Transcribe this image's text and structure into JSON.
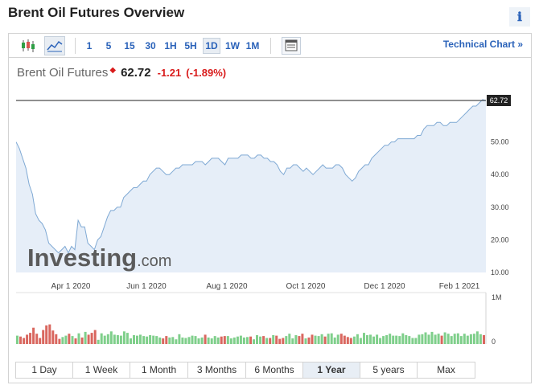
{
  "page_title": "Brent Oil Futures Overview",
  "info_icon": "ℹ",
  "toolbar": {
    "icons": [
      "candlestick-icon",
      "line-chart-icon",
      "chart-settings-icon"
    ],
    "intervals": [
      "1",
      "5",
      "15",
      "30",
      "1H",
      "5H",
      "1D",
      "1W",
      "1M"
    ],
    "active_interval": "1D",
    "technical_chart_label": "Technical Chart »"
  },
  "quote": {
    "name": "Brent Oil Futures",
    "price": "62.72",
    "change": "-1.21",
    "change_pct": "(-1.89%)"
  },
  "watermark": {
    "brand": "Investing",
    "suffix": ".com"
  },
  "ranges": [
    "1 Day",
    "1 Week",
    "1 Month",
    "3 Months",
    "6 Months",
    "1 Year",
    "5 years",
    "Max"
  ],
  "active_range": "1 Year",
  "colors": {
    "line": "#7fa9d4",
    "area": "#e6eef8",
    "up_bar": "#7fcf8b",
    "down_bar": "#d9675f",
    "accent": "#2a62b9",
    "negative": "#d91c1c"
  },
  "chart_data": {
    "type": "area",
    "series": [
      {
        "name": "Brent Oil Futures",
        "values": [
          50,
          48,
          45,
          42,
          37,
          34,
          28,
          26,
          25,
          23,
          19,
          18,
          17,
          16,
          17,
          18,
          16,
          18,
          17,
          26,
          24,
          24,
          19,
          18,
          17,
          20,
          21,
          24,
          27,
          29,
          29,
          30,
          30,
          33,
          34,
          35,
          36,
          36,
          37,
          38,
          38,
          40,
          41,
          42,
          42,
          41,
          40,
          40,
          41,
          42,
          42,
          43,
          43,
          43,
          43,
          44,
          44,
          44,
          43,
          44,
          45,
          45,
          45,
          44,
          43,
          45,
          45,
          45,
          45,
          46,
          46,
          46,
          45,
          45,
          46,
          46,
          45,
          45,
          44,
          44,
          43,
          41,
          40,
          42,
          42,
          43,
          43,
          42,
          41,
          42,
          41,
          40,
          41,
          42,
          43,
          42,
          42,
          42,
          43,
          43,
          42,
          40,
          39,
          38,
          39,
          41,
          42,
          43,
          43,
          45,
          46,
          47,
          48,
          49,
          49,
          50,
          50,
          51,
          51,
          51,
          51,
          51,
          51,
          52,
          52,
          54,
          55,
          55,
          55,
          56,
          56,
          55,
          55,
          56,
          56,
          56,
          57,
          58,
          59,
          60,
          61,
          61,
          62,
          63,
          62.72
        ]
      }
    ],
    "x_tick_labels": [
      "Apr 1 2020",
      "Jun 1 2020",
      "Aug 1 2020",
      "Oct 1 2020",
      "Dec 1 2020",
      "Feb 1 2021"
    ],
    "y_tick_labels": [
      "50.00",
      "40.00",
      "30.00",
      "20.00",
      "10.00"
    ],
    "y_ticks": [
      50,
      40,
      30,
      20,
      10
    ],
    "ylim": [
      10,
      62.72
    ],
    "last_value_label": "62.72",
    "volume": {
      "axis_labels": [
        "1M",
        "0"
      ],
      "values": [
        0.18,
        0.16,
        0.13,
        0.2,
        0.24,
        0.35,
        0.22,
        0.13,
        0.3,
        0.4,
        0.42,
        0.29,
        0.21,
        0.11,
        0.15,
        0.18,
        0.22,
        0.17,
        0.12,
        0.23,
        0.14,
        0.26,
        0.2,
        0.24,
        0.3,
        0.09,
        0.23,
        0.18,
        0.21,
        0.27,
        0.2,
        0.19,
        0.18,
        0.27,
        0.24,
        0.12,
        0.19,
        0.18,
        0.2,
        0.17,
        0.16,
        0.19,
        0.18,
        0.17,
        0.14,
        0.12,
        0.17,
        0.14,
        0.15,
        0.1,
        0.21,
        0.14,
        0.13,
        0.15,
        0.18,
        0.17,
        0.12,
        0.14,
        0.2,
        0.14,
        0.12,
        0.17,
        0.14,
        0.16,
        0.17,
        0.17,
        0.12,
        0.14,
        0.16,
        0.18,
        0.14,
        0.15,
        0.16,
        0.1,
        0.19,
        0.16,
        0.17,
        0.13,
        0.13,
        0.19,
        0.18,
        0.11,
        0.13,
        0.17,
        0.22,
        0.12,
        0.19,
        0.17,
        0.22,
        0.12,
        0.14,
        0.2,
        0.18,
        0.17,
        0.21,
        0.16,
        0.22,
        0.23,
        0.14,
        0.2,
        0.22,
        0.18,
        0.15,
        0.13,
        0.16,
        0.21,
        0.13,
        0.24,
        0.19,
        0.2,
        0.16,
        0.2,
        0.13,
        0.17,
        0.19,
        0.22,
        0.18,
        0.18,
        0.17,
        0.23,
        0.19,
        0.17,
        0.13,
        0.13,
        0.2,
        0.21,
        0.25,
        0.2,
        0.26,
        0.2,
        0.22,
        0.18,
        0.25,
        0.22,
        0.17,
        0.22,
        0.23,
        0.17,
        0.22,
        0.18,
        0.21,
        0.22,
        0.27,
        0.21,
        0.19
      ]
    }
  }
}
